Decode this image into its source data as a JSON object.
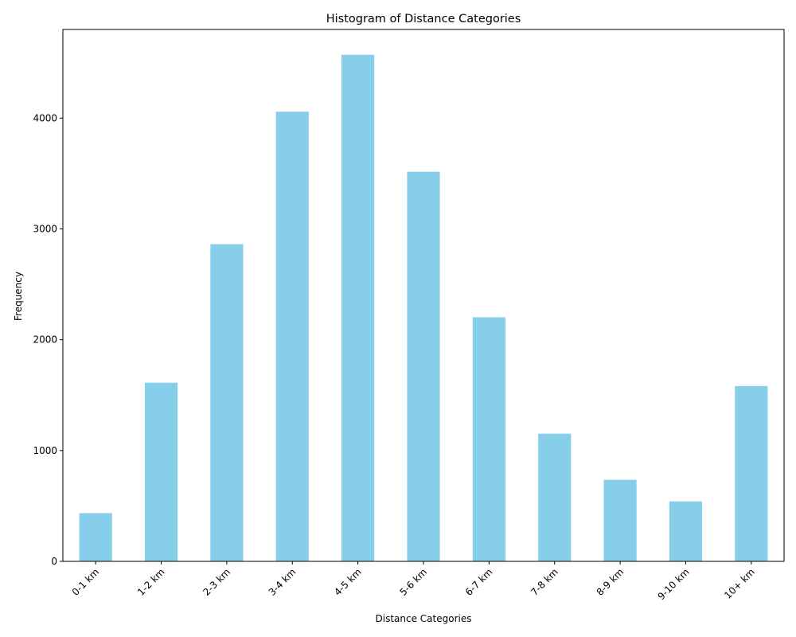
{
  "chart_data": {
    "type": "bar",
    "title": "Histogram of Distance Categories",
    "xlabel": "Distance Categories",
    "ylabel": "Frequency",
    "categories": [
      "0-1 km",
      "1-2 km",
      "2-3 km",
      "3-4 km",
      "4-5 km",
      "5-6 km",
      "6-7 km",
      "7-8 km",
      "8-9 km",
      "9-10 km",
      "10+ km"
    ],
    "values": [
      435,
      1612,
      2862,
      4058,
      4572,
      3516,
      2203,
      1152,
      736,
      541,
      1582
    ],
    "ylim": [
      0,
      4800
    ],
    "yticks": [
      0,
      1000,
      2000,
      3000,
      4000
    ],
    "ytick_labels": [
      "0",
      "1000",
      "2000",
      "3000",
      "4000"
    ],
    "bar_color": "#87ceeb",
    "grid": false,
    "legend": false
  }
}
